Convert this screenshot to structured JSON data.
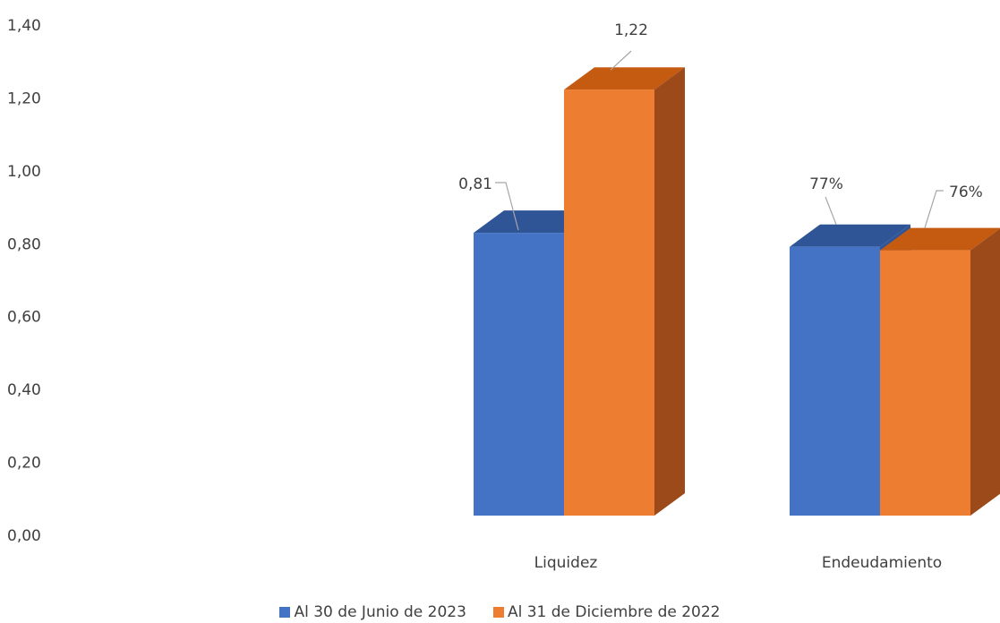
{
  "chart_data": {
    "type": "bar",
    "categories": [
      "Liquidez",
      "Endeudamiento"
    ],
    "series": [
      {
        "name": "Al 30 de Junio de 2023",
        "values": [
          0.81,
          0.77
        ],
        "labels": [
          "0,81",
          "77%"
        ],
        "color": "#4472c4",
        "top_color": "#2f5597",
        "side_color": "#2f5597"
      },
      {
        "name": "Al 31 de Diciembre de 2022",
        "values": [
          1.22,
          0.76
        ],
        "labels": [
          "1,22",
          "76%"
        ],
        "color": "#ed7d31",
        "top_color": "#c55a11",
        "side_color": "#9c4a1a"
      }
    ],
    "y_ticks": [
      "0,00",
      "0,20",
      "0,40",
      "0,60",
      "0,80",
      "1,00",
      "1,20",
      "1,40"
    ],
    "y_tick_values": [
      0,
      0.2,
      0.4,
      0.6,
      0.8,
      1.0,
      1.2,
      1.4
    ],
    "ylim": [
      0,
      1.4
    ],
    "grid": false,
    "legend_position": "bottom",
    "style": "3d-column"
  }
}
